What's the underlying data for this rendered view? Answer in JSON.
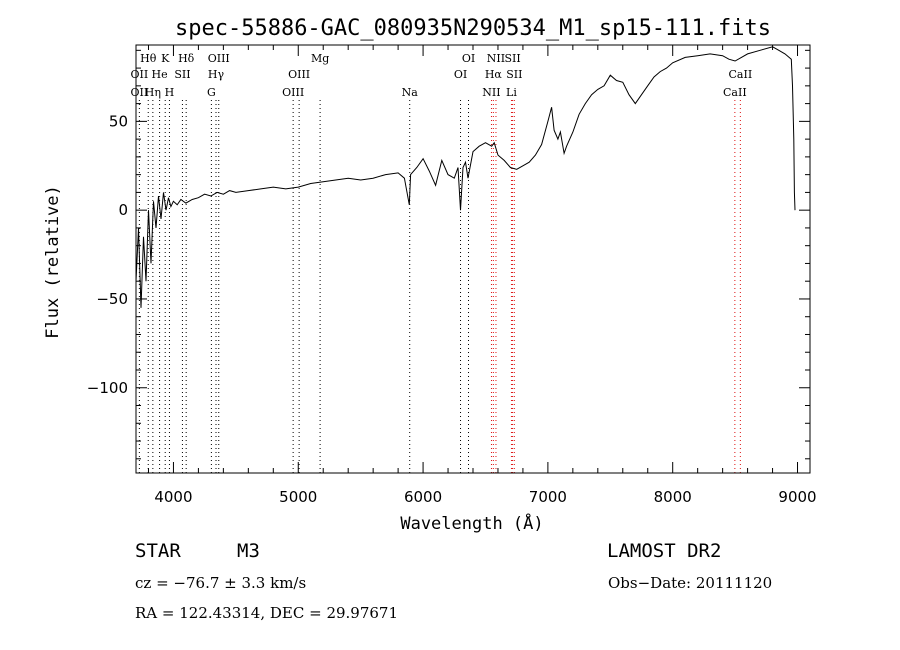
{
  "chart_data": {
    "type": "line",
    "title": "spec-55886-GAC_080935N290534_M1_sp15-111.fits",
    "xlabel": "Wavelength (Å)",
    "ylabel": "Flux (relative)",
    "xlim": [
      3700,
      9100
    ],
    "ylim": [
      -148,
      93
    ],
    "x_ticks": [
      4000,
      5000,
      6000,
      7000,
      8000,
      9000
    ],
    "y_ticks": [
      -100,
      -50,
      0,
      50
    ],
    "x_tick_labels": [
      "4000",
      "5000",
      "6000",
      "7000",
      "8000",
      "9000"
    ],
    "y_tick_labels": [
      "−100",
      "−50",
      "0",
      "50"
    ],
    "grid": false,
    "series": [
      {
        "x": [
          3700,
          3720,
          3740,
          3760,
          3780,
          3800,
          3820,
          3840,
          3860,
          3880,
          3900,
          3920,
          3940,
          3960,
          3980,
          4000,
          4030,
          4060,
          4100,
          4150,
          4200,
          4250,
          4300,
          4350,
          4400,
          4450,
          4500,
          4600,
          4700,
          4800,
          4900,
          5000,
          5100,
          5200,
          5300,
          5400,
          5500,
          5600,
          5700,
          5800,
          5850,
          5890,
          5900,
          5950,
          6000,
          6050,
          6100,
          6150,
          6200,
          6250,
          6280,
          6300,
          6320,
          6340,
          6360,
          6400,
          6450,
          6500,
          6550,
          6570,
          6600,
          6650,
          6700,
          6750,
          6800,
          6850,
          6900,
          6950,
          7000,
          7030,
          7050,
          7080,
          7100,
          7130,
          7150,
          7200,
          7250,
          7300,
          7350,
          7400,
          7450,
          7500,
          7550,
          7600,
          7650,
          7700,
          7750,
          7800,
          7850,
          7900,
          7950,
          8000,
          8100,
          8200,
          8300,
          8400,
          8450,
          8500,
          8550,
          8600,
          8700,
          8800,
          8850,
          8900,
          8950,
          8960,
          8970,
          8975,
          8980
        ],
        "y": [
          -40,
          -10,
          -55,
          -15,
          -40,
          0,
          -30,
          5,
          -10,
          8,
          -5,
          10,
          0,
          7,
          2,
          5,
          3,
          6,
          4,
          6,
          7,
          9,
          8,
          10,
          9,
          11,
          10,
          11,
          12,
          13,
          12,
          13,
          15,
          16,
          17,
          18,
          17,
          18,
          20,
          21,
          18,
          3,
          20,
          24,
          29,
          22,
          14,
          28,
          20,
          18,
          24,
          0,
          24,
          27,
          18,
          33,
          36,
          38,
          36,
          38,
          31,
          28,
          24,
          23,
          25,
          27,
          31,
          37,
          50,
          58,
          45,
          40,
          44,
          32,
          36,
          44,
          54,
          60,
          65,
          68,
          70,
          76,
          73,
          72,
          65,
          60,
          65,
          70,
          75,
          78,
          80,
          83,
          86,
          87,
          88,
          87,
          85,
          84,
          86,
          88,
          90,
          92,
          90,
          88,
          85,
          70,
          40,
          10,
          0
        ]
      }
    ],
    "line_labels": [
      {
        "name": "Hθ",
        "x": 3798,
        "row": 1
      },
      {
        "name": "OII",
        "x": 3727,
        "row": 2
      },
      {
        "name": "OII",
        "x": 3727,
        "row": 3
      },
      {
        "name": "K",
        "x": 3934,
        "row": 1
      },
      {
        "name": "He",
        "x": 3889,
        "row": 2
      },
      {
        "name": "Hη",
        "x": 3835,
        "row": 3
      },
      {
        "name": "H",
        "x": 3968,
        "row": 3
      },
      {
        "name": "Hδ",
        "x": 4102,
        "row": 1
      },
      {
        "name": "SII",
        "x": 4072,
        "row": 2
      },
      {
        "name": "OIII",
        "x": 4363,
        "row": 1
      },
      {
        "name": "Hγ",
        "x": 4341,
        "row": 2
      },
      {
        "name": "G",
        "x": 4304,
        "row": 3
      },
      {
        "name": "Mg",
        "x": 5175,
        "row": 1
      },
      {
        "name": "OIII",
        "x": 5007,
        "row": 2
      },
      {
        "name": "OIII",
        "x": 4959,
        "row": 3
      },
      {
        "name": "Na",
        "x": 5893,
        "row": 3
      },
      {
        "name": "OI",
        "x": 6364,
        "row": 1
      },
      {
        "name": "OI",
        "x": 6300,
        "row": 2
      },
      {
        "name": "NII",
        "x": 6584,
        "row": 1
      },
      {
        "name": "SII",
        "x": 6717,
        "row": 1
      },
      {
        "name": "Hα",
        "x": 6563,
        "row": 2
      },
      {
        "name": "SII",
        "x": 6731,
        "row": 2
      },
      {
        "name": "NII",
        "x": 6548,
        "row": 3
      },
      {
        "name": "Li",
        "x": 6708,
        "row": 3
      },
      {
        "name": "CaII",
        "x": 8542,
        "row": 2
      },
      {
        "name": "CaII",
        "x": 8498,
        "row": 3
      }
    ],
    "line_markers_black": [
      3727,
      3798,
      3835,
      3889,
      3934,
      3968,
      4072,
      4102,
      4304,
      4341,
      4363,
      4959,
      5007,
      5175,
      5893,
      6300,
      6364
    ],
    "line_markers_red": [
      6548,
      6563,
      6584,
      6708,
      6717,
      6731,
      8498,
      8542
    ]
  },
  "info": {
    "object_type": "STAR",
    "subclass": "M3",
    "survey": "LAMOST DR2",
    "cz": "cz = −76.7 ± 3.3 km/s",
    "obs_date": "Obs−Date: 20111120",
    "radec": "RA = 122.43314, DEC =  29.97671"
  }
}
